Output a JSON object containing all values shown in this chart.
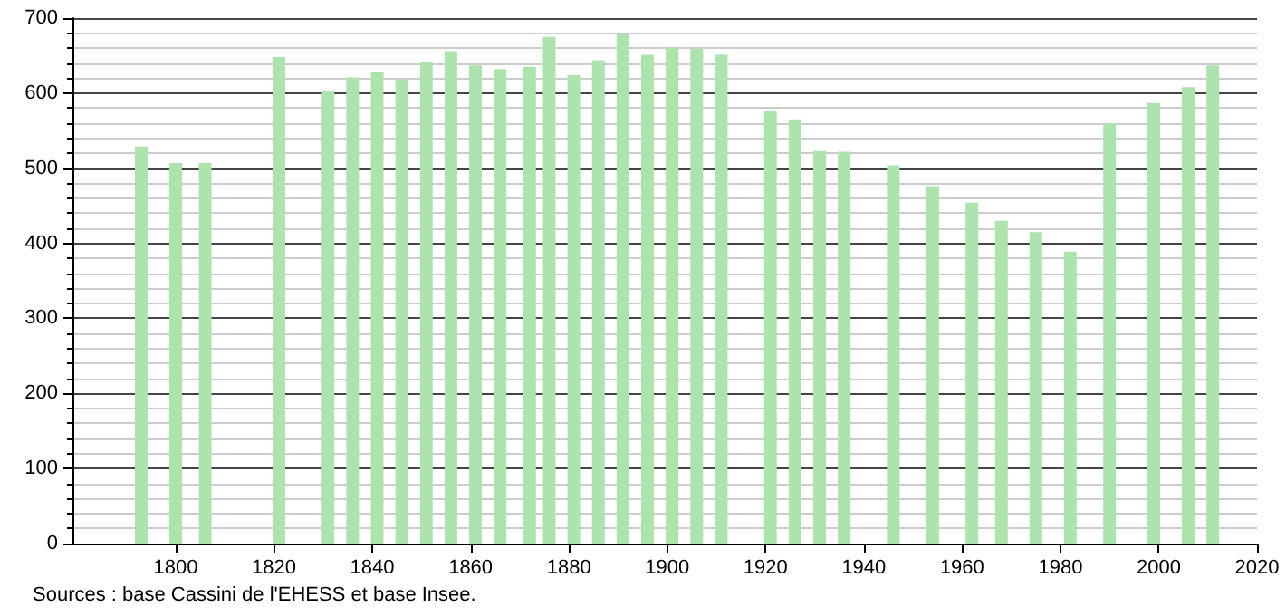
{
  "chart_data": {
    "type": "bar",
    "x": [
      1793,
      1800,
      1806,
      1821,
      1831,
      1836,
      1841,
      1846,
      1851,
      1856,
      1861,
      1866,
      1872,
      1876,
      1881,
      1886,
      1891,
      1896,
      1901,
      1906,
      1911,
      1921,
      1926,
      1931,
      1936,
      1946,
      1954,
      1962,
      1968,
      1975,
      1982,
      1990,
      1999,
      2006,
      2011
    ],
    "values": [
      529,
      507,
      507,
      648,
      603,
      621,
      628,
      618,
      642,
      656,
      637,
      632,
      635,
      675,
      624,
      644,
      679,
      651,
      661,
      659,
      651,
      577,
      565,
      523,
      522,
      504,
      476,
      454,
      430,
      415,
      389,
      560,
      587,
      608,
      637
    ],
    "color": "#ade3ad",
    "xlim": [
      1779,
      2020
    ],
    "xticks": [
      1800,
      1820,
      1840,
      1860,
      1880,
      1900,
      1920,
      1940,
      1960,
      1980,
      2000,
      2020
    ],
    "ylim": [
      0,
      700
    ],
    "yticks": [
      0,
      100,
      200,
      300,
      400,
      500,
      600,
      700
    ],
    "grid": "y",
    "annotations": [
      "Sources : base Cassini de l'EHESS et base Insee."
    ]
  }
}
